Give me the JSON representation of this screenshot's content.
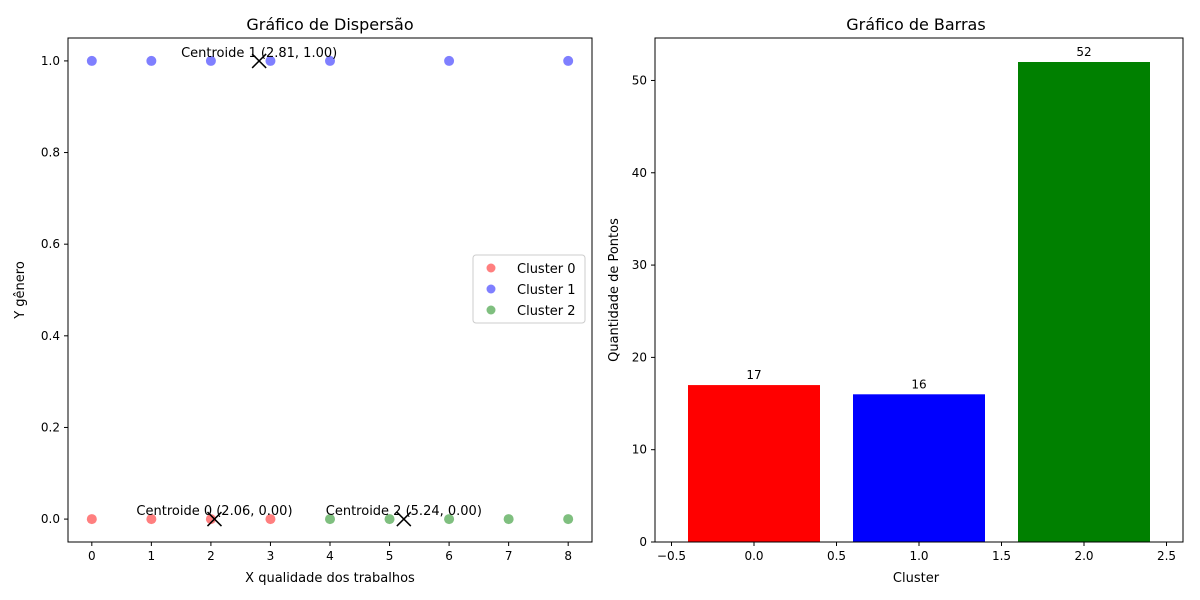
{
  "chart_data": [
    {
      "type": "scatter",
      "title": "Gráfico de Dispersão",
      "xlabel": "X qualidade dos trabalhos",
      "ylabel": "Y gênero",
      "xlim": [
        -0.4,
        8.4
      ],
      "ylim": [
        -0.05,
        1.05
      ],
      "xticks": [
        "0",
        "1",
        "2",
        "3",
        "4",
        "5",
        "6",
        "7",
        "8"
      ],
      "yticks": [
        "0.0",
        "0.2",
        "0.4",
        "0.6",
        "0.8",
        "1.0"
      ],
      "grid": false,
      "legend_position": "center-right",
      "series": [
        {
          "name": "Cluster 0",
          "color": "#ff0000",
          "points": [
            [
              0,
              0
            ],
            [
              1,
              0
            ],
            [
              2,
              0
            ],
            [
              3,
              0
            ]
          ]
        },
        {
          "name": "Cluster 1",
          "color": "#0000ff",
          "points": [
            [
              0,
              1
            ],
            [
              1,
              1
            ],
            [
              2,
              1
            ],
            [
              3,
              1
            ],
            [
              4,
              1
            ],
            [
              6,
              1
            ],
            [
              8,
              1
            ]
          ]
        },
        {
          "name": "Cluster 2",
          "color": "#008000",
          "points": [
            [
              4,
              0
            ],
            [
              5,
              0
            ],
            [
              6,
              0
            ],
            [
              7,
              0
            ],
            [
              8,
              0
            ]
          ]
        }
      ],
      "centroids": [
        {
          "label": "Centroide 0 (2.06, 0.00)",
          "x": 2.06,
          "y": 0.0
        },
        {
          "label": "Centroide 1 (2.81, 1.00)",
          "x": 2.81,
          "y": 1.0
        },
        {
          "label": "Centroide 2 (5.24, 0.00)",
          "x": 5.24,
          "y": 0.0
        }
      ]
    },
    {
      "type": "bar",
      "title": "Gráfico de Barras",
      "xlabel": "Cluster",
      "ylabel": "Quantidade de Pontos",
      "categories": [
        0,
        1,
        2
      ],
      "values": [
        17,
        16,
        52
      ],
      "colors": [
        "#ff0000",
        "#0000ff",
        "#008000"
      ],
      "data_labels": [
        "17",
        "16",
        "52"
      ],
      "xlim": [
        -0.6,
        2.6
      ],
      "ylim": [
        0,
        54.6
      ],
      "xticks": [
        "−0.5",
        "0.0",
        "0.5",
        "1.0",
        "1.5",
        "2.0",
        "2.5"
      ],
      "yticks": [
        "0",
        "10",
        "20",
        "30",
        "40",
        "50"
      ],
      "grid": false
    }
  ]
}
